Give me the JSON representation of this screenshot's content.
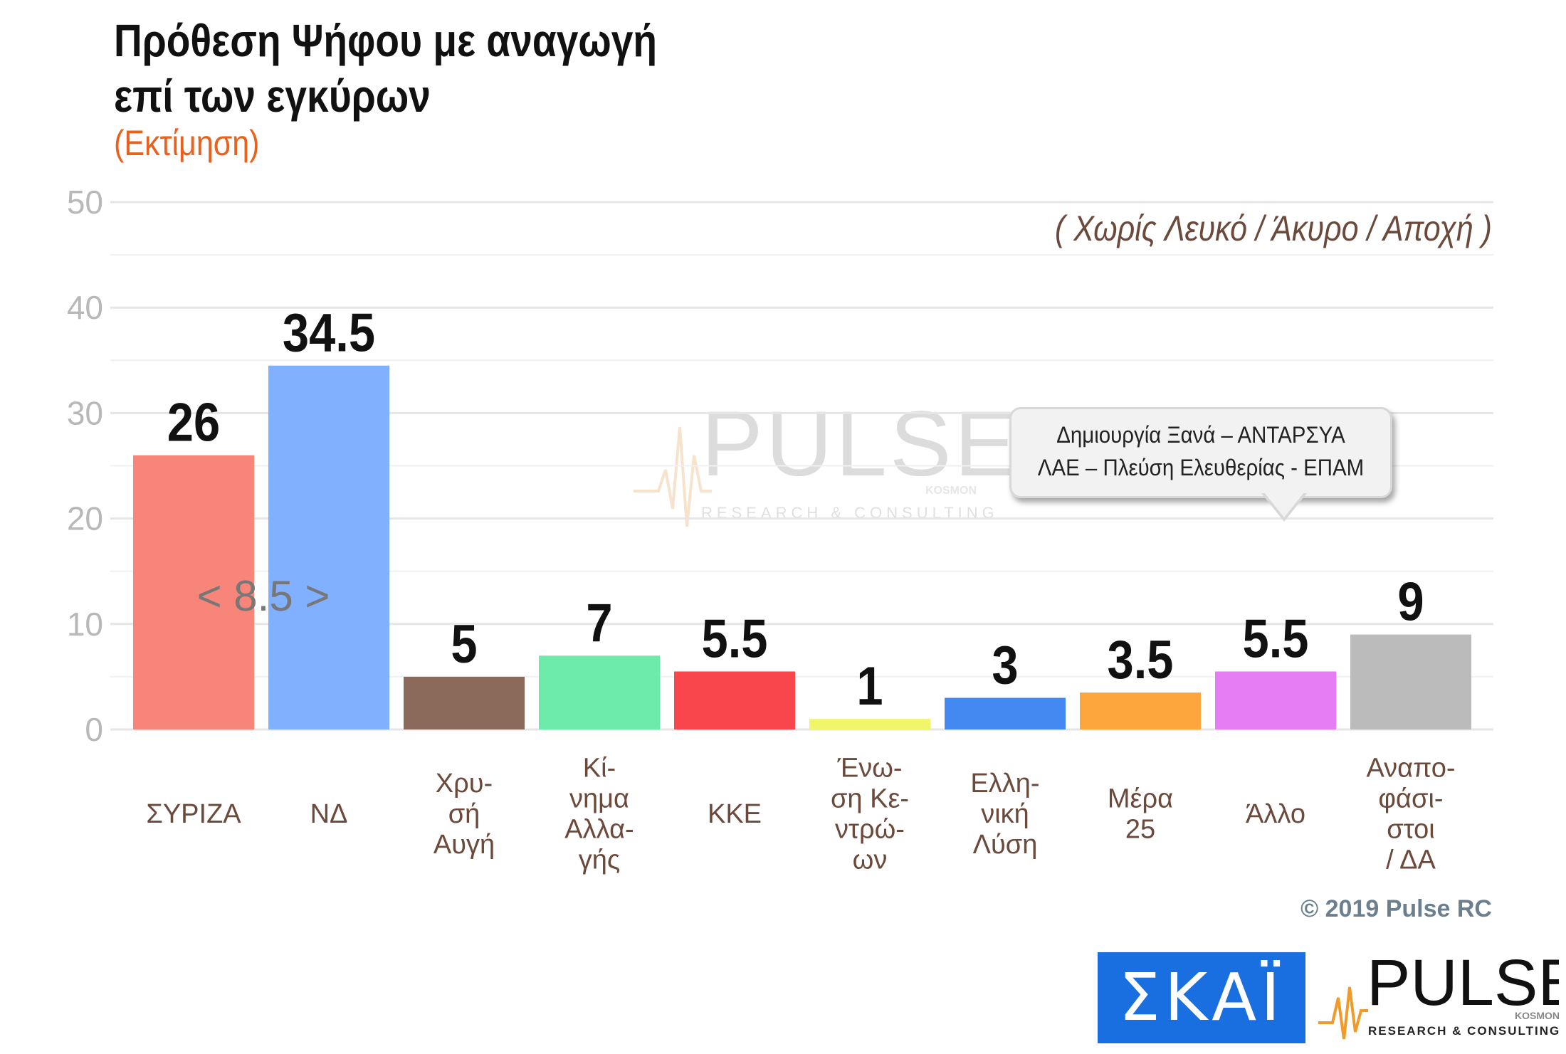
{
  "title_line1": "Πρόθεση Ψήφου με αναγωγή",
  "title_line2": "επί των εγκύρων",
  "subtitle": "(Εκτίμηση)",
  "note": "( Χωρίς Λευκό / Άκυρο / Αποχή )",
  "callout_line1": "Δημιουργία Ξανά – ΑΝΤΑΡΣΥΑ",
  "callout_line2": "ΛΑΕ – Πλεύση Ελευθερίας - ΕΠΑΜ",
  "difference_label": "< 8.5 >",
  "copyright": "© 2019 Pulse RC",
  "logos": {
    "skai": "ΣΚΑΪ",
    "pulse": "PULSE",
    "pulse_tag": "RESEARCH & CONSULTING",
    "pulse_small": "KOSMON"
  },
  "watermark": {
    "text": "PULSE",
    "sub": "RESEARCH & CONSULTING",
    "small": "KOSMON"
  },
  "chart_data": {
    "type": "bar",
    "title": "Πρόθεση Ψήφου με αναγωγή επί των εγκύρων",
    "subtitle": "(Εκτίμηση)",
    "categories": [
      [
        "ΣΥΡΙΖΑ"
      ],
      [
        "ΝΔ"
      ],
      [
        "Χρυ-",
        "σή",
        "Αυγή"
      ],
      [
        "Κί-",
        "νημα",
        "Αλλα-",
        "γής"
      ],
      [
        "ΚΚΕ"
      ],
      [
        "Ένω-",
        "ση Κε-",
        "ντρώ-",
        "ων"
      ],
      [
        "Ελλη-",
        "νική",
        "Λύση"
      ],
      [
        "Μέρα",
        "25"
      ],
      [
        "Άλλο"
      ],
      [
        "Αναπο-",
        "φάσι-",
        "στοι",
        "/ ΔΑ"
      ]
    ],
    "values": [
      26,
      34.5,
      5,
      7,
      5.5,
      1,
      3,
      3.5,
      5.5,
      9
    ],
    "value_labels": [
      "26",
      "34.5",
      "5",
      "7",
      "5.5",
      "1",
      "3",
      "3.5",
      "5.5",
      "9"
    ],
    "colors": [
      "#f88579",
      "#80b0ff",
      "#8b6a5c",
      "#6cebaa",
      "#f9464c",
      "#f0f56a",
      "#4488f2",
      "#fca63d",
      "#e67df4",
      "#bbbbbb"
    ],
    "ylim": [
      0,
      50
    ],
    "yticks": [
      0,
      10,
      20,
      30,
      40,
      50
    ],
    "grid": true,
    "xlabel": "",
    "ylabel": ""
  }
}
